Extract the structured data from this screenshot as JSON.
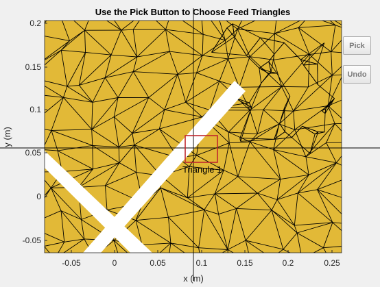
{
  "plot": {
    "title": "Use the Pick Button to Choose Feed Triangles",
    "xlabel": "x (m)",
    "ylabel": "y (m)",
    "x_ticks": [
      "-0.05",
      "0",
      "0.05",
      "0.1",
      "0.15",
      "0.2",
      "0.25"
    ],
    "y_ticks": [
      "0.2",
      "0.15",
      "0.1",
      "0.05",
      "0",
      "-0.05"
    ],
    "annotation": "Triangle 1",
    "colors": {
      "mesh_fill": "#e2b937",
      "mesh_edge": "#000000",
      "feed_box": "#c0272d",
      "slot": "#ffffff"
    }
  },
  "buttons": {
    "pick": "Pick",
    "undo": "Undo"
  }
}
